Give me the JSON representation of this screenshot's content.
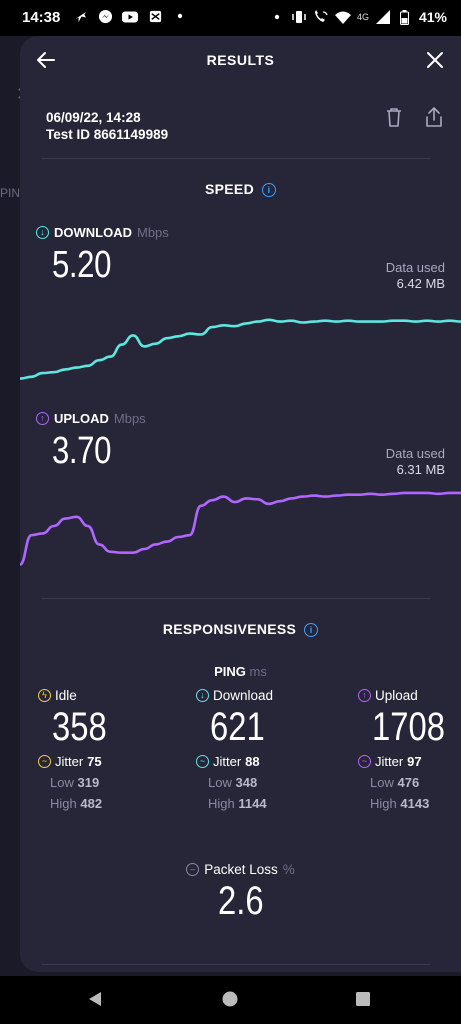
{
  "status_bar": {
    "time": "14:38",
    "network": "4G",
    "battery": "41%"
  },
  "header": {
    "title": "RESULTS"
  },
  "meta": {
    "datetime": "06/09/22, 14:28",
    "test_id": "Test ID 8661149989"
  },
  "speed": {
    "title": "SPEED",
    "download": {
      "label": "DOWNLOAD",
      "unit": "Mbps",
      "value": "5.20",
      "data_used_label": "Data used",
      "data_used_value": "6.42 MB",
      "color": "#5ee7df",
      "series": [
        0.08,
        0.1,
        0.14,
        0.15,
        0.18,
        0.2,
        0.22,
        0.28,
        0.32,
        0.45,
        0.55,
        0.43,
        0.46,
        0.52,
        0.54,
        0.57,
        0.56,
        0.64,
        0.66,
        0.65,
        0.68,
        0.7,
        0.72,
        0.7,
        0.71,
        0.69,
        0.7,
        0.71,
        0.7,
        0.71,
        0.7,
        0.7,
        0.7,
        0.71,
        0.71,
        0.7,
        0.71,
        0.7,
        0.71,
        0.7
      ]
    },
    "upload": {
      "label": "UPLOAD",
      "unit": "Mbps",
      "value": "3.70",
      "data_used_label": "Data used",
      "data_used_value": "6.31 MB",
      "color": "#b066ff",
      "series": [
        0.08,
        0.4,
        0.42,
        0.5,
        0.58,
        0.6,
        0.5,
        0.3,
        0.22,
        0.21,
        0.21,
        0.25,
        0.3,
        0.33,
        0.38,
        0.4,
        0.72,
        0.78,
        0.82,
        0.76,
        0.8,
        0.79,
        0.74,
        0.77,
        0.8,
        0.82,
        0.83,
        0.82,
        0.83,
        0.84,
        0.84,
        0.85,
        0.84,
        0.85,
        0.86,
        0.86,
        0.86,
        0.85,
        0.86,
        0.86
      ]
    }
  },
  "responsiveness": {
    "title": "RESPONSIVENESS",
    "ping_label": "PING",
    "ping_unit": "ms",
    "columns": [
      {
        "label": "Idle",
        "value": "358",
        "jitter_label": "Jitter",
        "jitter": "75",
        "low_label": "Low",
        "low": "319",
        "high_label": "High",
        "high": "482",
        "color": "#f0d040"
      },
      {
        "label": "Download",
        "value": "621",
        "jitter_label": "Jitter",
        "jitter": "88",
        "low_label": "Low",
        "low": "348",
        "high_label": "High",
        "high": "1144",
        "color": "#5ee7df"
      },
      {
        "label": "Upload",
        "value": "1708",
        "jitter_label": "Jitter",
        "jitter": "97",
        "low_label": "Low",
        "low": "476",
        "high_label": "High",
        "high": "4143",
        "color": "#b066ff"
      }
    ],
    "packet_loss": {
      "label": "Packet Loss",
      "unit": "%",
      "value": "2.6"
    }
  }
}
